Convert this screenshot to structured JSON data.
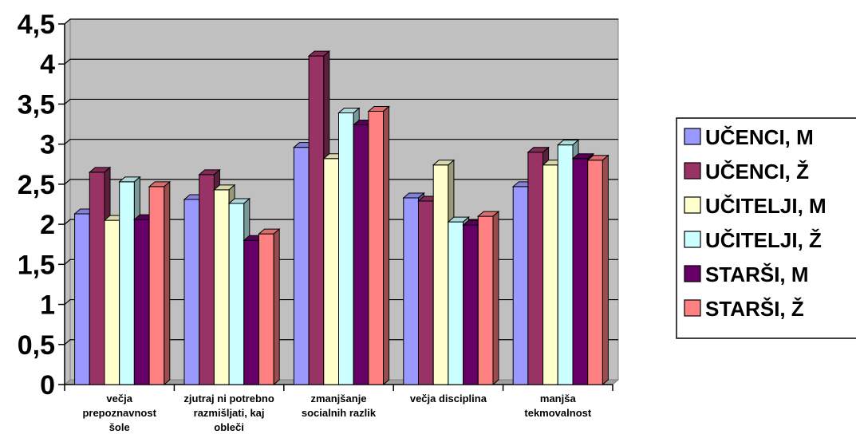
{
  "chart_data": {
    "type": "bar",
    "title": "",
    "xlabel": "",
    "ylabel": "",
    "ylim": [
      0,
      4.5
    ],
    "yticks": [
      "0",
      "0,5",
      "1",
      "1,5",
      "2",
      "2,5",
      "3",
      "3,5",
      "4",
      "4,5"
    ],
    "grid": true,
    "legend_position": "right",
    "categories": [
      [
        "večja",
        "prepoznavnost",
        "šole"
      ],
      [
        "zjutraj ni potrebno",
        "razmišljati, kaj",
        "obleči"
      ],
      [
        "zmanjšanje",
        "socialnih razlik"
      ],
      [
        "večja disciplina"
      ],
      [
        "manjša",
        "tekmovalnost"
      ]
    ],
    "series": [
      {
        "name": "UČENCI, M",
        "color": "#9999ff",
        "values": [
          2.13,
          2.31,
          2.96,
          2.33,
          2.47
        ]
      },
      {
        "name": "UČENCI, Ž",
        "color": "#993366",
        "values": [
          2.65,
          2.62,
          4.1,
          2.29,
          2.9
        ]
      },
      {
        "name": "UČITELJI, M",
        "color": "#ffffcc",
        "values": [
          2.05,
          2.43,
          2.82,
          2.74,
          2.74
        ]
      },
      {
        "name": "UČITELJI, Ž",
        "color": "#ccffff",
        "values": [
          2.53,
          2.26,
          3.39,
          2.03,
          2.99
        ]
      },
      {
        "name": "STARŠI, M",
        "color": "#660066",
        "values": [
          2.06,
          1.8,
          3.24,
          1.99,
          2.82
        ]
      },
      {
        "name": "STARŠI, Ž",
        "color": "#ff8080",
        "values": [
          2.47,
          1.88,
          3.41,
          2.1,
          2.8
        ]
      }
    ]
  }
}
